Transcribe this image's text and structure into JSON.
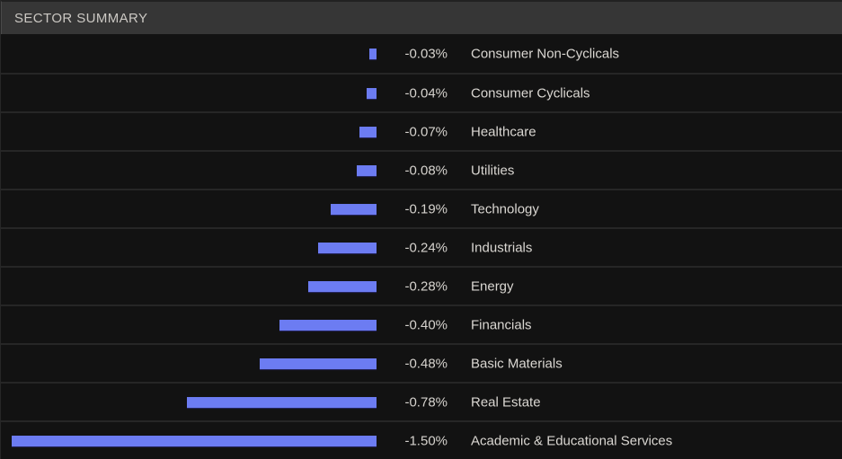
{
  "header": {
    "title": "SECTOR SUMMARY"
  },
  "colors": {
    "bar": "#6c7cf2",
    "header_bg": "#363636",
    "row_bg": "#121212",
    "separator": "#262626",
    "text": "#d5d2cd"
  },
  "chart_data": {
    "type": "bar",
    "orientation": "horizontal",
    "title": "SECTOR SUMMARY",
    "categories": [
      "Consumer Non-Cyclicals",
      "Consumer Cyclicals",
      "Healthcare",
      "Utilities",
      "Technology",
      "Industrials",
      "Energy",
      "Financials",
      "Basic Materials",
      "Real Estate",
      "Academic & Educational Services"
    ],
    "values": [
      -0.03,
      -0.04,
      -0.07,
      -0.08,
      -0.19,
      -0.24,
      -0.28,
      -0.4,
      -0.48,
      -0.78,
      -1.5
    ],
    "value_labels": [
      "-0.03%",
      "-0.04%",
      "-0.07%",
      "-0.08%",
      "-0.19%",
      "-0.24%",
      "-0.28%",
      "-0.40%",
      "-0.48%",
      "-0.78%",
      "-1.50%"
    ],
    "xlim": [
      -1.5,
      0
    ],
    "grid": false,
    "legend": false,
    "bar_color": "#6c7cf2"
  }
}
